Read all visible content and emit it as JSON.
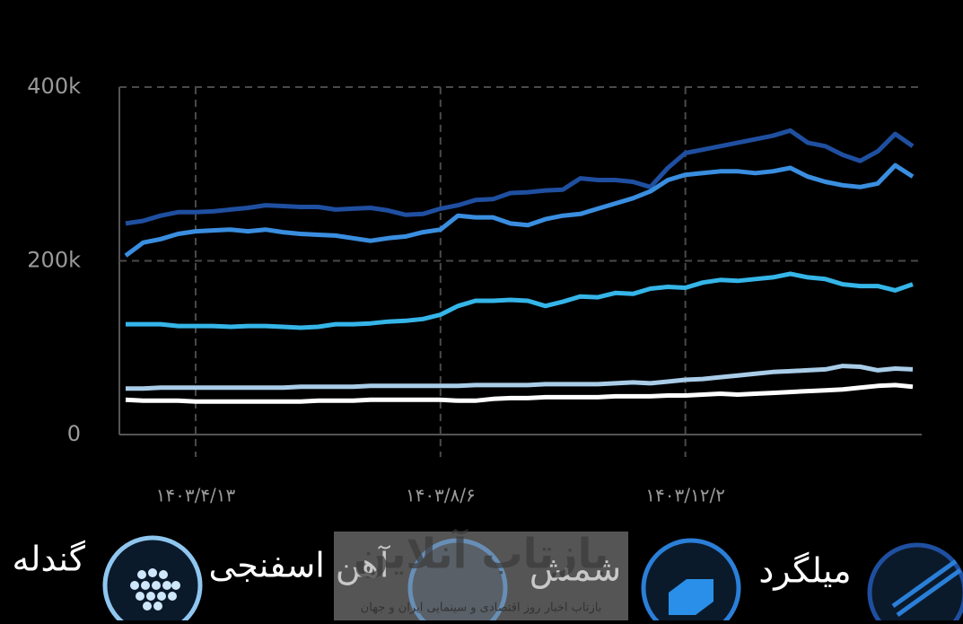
{
  "chart_data": {
    "type": "line",
    "categories": [
      null,
      null,
      null,
      null,
      "۱۴۰۳/۴/۱۳",
      null,
      null,
      null,
      null,
      null,
      null,
      null,
      null,
      null,
      null,
      null,
      null,
      null,
      "۱۴۰۳/۸/۶",
      null,
      null,
      null,
      null,
      null,
      null,
      null,
      null,
      null,
      null,
      null,
      null,
      null,
      "۱۴۰۳/۱۲/۲",
      null,
      null,
      null,
      null,
      null,
      null,
      null,
      null,
      null,
      null,
      null,
      null,
      null
    ],
    "series": [
      {
        "color": "#1f4fa0",
        "values": [
          243000,
          246000,
          252000,
          256000,
          256000,
          257000,
          259000,
          261000,
          264000,
          263000,
          262000,
          262000,
          259000,
          260000,
          261000,
          258000,
          253000,
          254000,
          260000,
          264000,
          270000,
          271000,
          278000,
          279000,
          281000,
          282000,
          295000,
          293000,
          293000,
          291000,
          285000,
          307000,
          324000,
          328000,
          332000,
          336000,
          340000,
          344000,
          350000,
          336000,
          332000,
          322000,
          315000,
          326000,
          346000,
          332000
        ]
      },
      {
        "color": "#3a8ee0",
        "values": [
          206000,
          221000,
          225000,
          231000,
          234000,
          235000,
          236000,
          234000,
          236000,
          233000,
          231000,
          230000,
          229000,
          226000,
          223000,
          226000,
          228000,
          233000,
          236000,
          252000,
          250000,
          250000,
          243000,
          241000,
          248000,
          252000,
          254000,
          260000,
          266000,
          272000,
          280000,
          293000,
          299000,
          301000,
          303000,
          303000,
          301000,
          303000,
          307000,
          297000,
          291000,
          287000,
          285000,
          289000,
          310000,
          297000
        ]
      },
      {
        "color": "#35b5e8",
        "values": [
          127000,
          127000,
          127000,
          125000,
          125000,
          125000,
          124000,
          125000,
          125000,
          124000,
          123000,
          124000,
          127000,
          127000,
          128000,
          130000,
          131000,
          133000,
          138000,
          148000,
          154000,
          154000,
          155000,
          154000,
          148000,
          153000,
          159000,
          158000,
          163000,
          162000,
          168000,
          170000,
          169000,
          175000,
          178000,
          177000,
          179000,
          181000,
          185000,
          181000,
          179000,
          173000,
          171000,
          171000,
          166000,
          173000
        ]
      },
      {
        "color": "#a9cde8",
        "values": [
          53000,
          53000,
          54000,
          54000,
          54000,
          54000,
          54000,
          54000,
          54000,
          54000,
          55000,
          55000,
          55000,
          55000,
          56000,
          56000,
          56000,
          56000,
          56000,
          56000,
          57000,
          57000,
          57000,
          57000,
          58000,
          58000,
          58000,
          58000,
          59000,
          60000,
          59000,
          61000,
          63000,
          64000,
          66000,
          68000,
          70000,
          72000,
          73000,
          74000,
          75000,
          79000,
          78000,
          74000,
          76000,
          75000
        ]
      },
      {
        "color": "#ffffff",
        "values": [
          40000,
          39000,
          39000,
          39000,
          38000,
          38000,
          38000,
          38000,
          38000,
          38000,
          38000,
          39000,
          39000,
          39000,
          40000,
          40000,
          40000,
          40000,
          40000,
          39000,
          39000,
          41000,
          42000,
          42000,
          43000,
          43000,
          43000,
          43000,
          44000,
          44000,
          44000,
          45000,
          45000,
          46000,
          47000,
          46000,
          47000,
          48000,
          49000,
          50000,
          51000,
          52000,
          54000,
          56000,
          57000,
          55000
        ]
      }
    ],
    "ylim": [
      0,
      400000
    ],
    "yticks": [
      0,
      {
        "value": 200000,
        "label": "200k"
      },
      {
        "value": 400000,
        "label": "400k"
      }
    ],
    "grid": true
  },
  "tabs": [
    {
      "label": "گندله"
    },
    {
      "label": "آهن اسفنجی"
    },
    {
      "label": "شمش"
    },
    {
      "label": "میلگرد"
    }
  ],
  "watermark": {
    "title": "بازتاب آنلاین",
    "subtitle": "بازتاب اخبار روز اقتصادی و سینمایی ایران و جهان"
  }
}
